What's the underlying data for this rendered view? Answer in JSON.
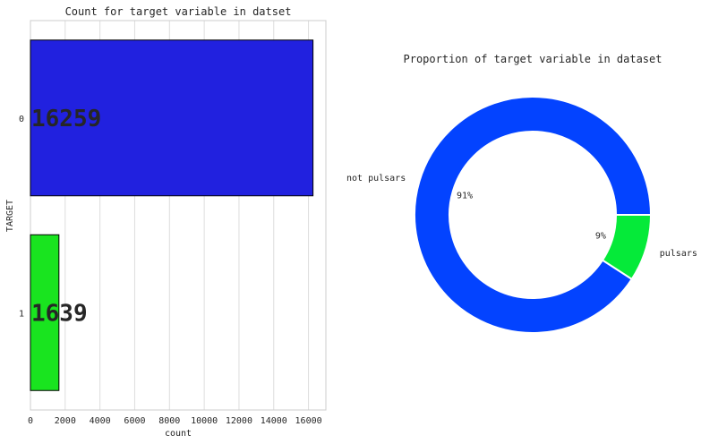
{
  "chart_data": [
    {
      "type": "bar",
      "orientation": "horizontal",
      "title": "Count for target variable in datset",
      "xlabel": "count",
      "ylabel": "TARGET",
      "categories": [
        "0",
        "1"
      ],
      "values": [
        16259,
        1639
      ],
      "data_labels": [
        "16259",
        "1639"
      ],
      "colors": [
        "#2121df",
        "#19e41f"
      ],
      "xlim": [
        0,
        17000
      ],
      "xticks": [
        0,
        2000,
        4000,
        6000,
        8000,
        10000,
        12000,
        14000,
        16000
      ],
      "grid": true
    },
    {
      "type": "pie",
      "style": "donut",
      "title": "Proportion of target variable in dataset",
      "labels": [
        "not pulsars",
        "pulsars"
      ],
      "values": [
        16259,
        1639
      ],
      "percent_labels": [
        "91%",
        "9%"
      ],
      "colors": [
        "#0343ff",
        "#05ea39"
      ]
    }
  ]
}
